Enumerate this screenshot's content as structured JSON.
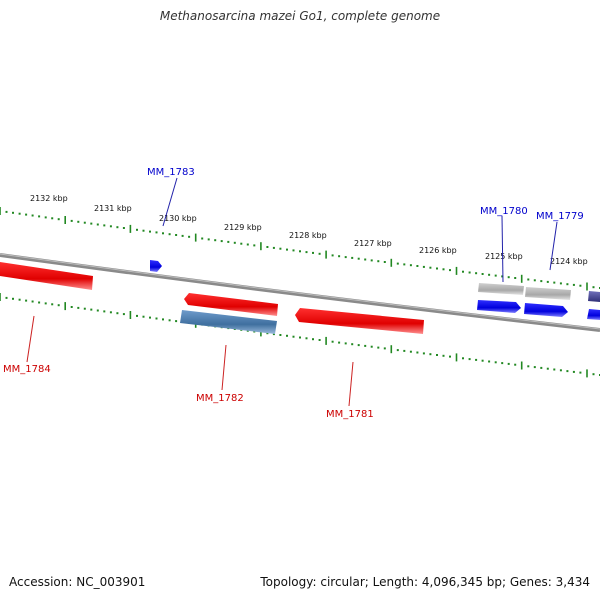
{
  "title": "Methanosarcina mazei Go1, complete genome",
  "footer": {
    "accession": "Accession: NC_003901",
    "summary": "Topology: circular; Length: 4,096,345 bp; Genes: 3,434"
  },
  "ruler": {
    "labels": [
      "2132 kbp",
      "2131 kbp",
      "2130 kbp",
      "2129 kbp",
      "2128 kbp",
      "2127 kbp",
      "2126 kbp",
      "2125 kbp",
      "2124 kbp"
    ]
  },
  "genes": [
    {
      "name": "MM_1783",
      "strand": "forward",
      "color": "#0000cc"
    },
    {
      "name": "MM_1780",
      "strand": "forward",
      "color": "#0000cc"
    },
    {
      "name": "MM_1779",
      "strand": "forward",
      "color": "#0000cc"
    },
    {
      "name": "MM_1784",
      "strand": "reverse",
      "color": "#cc0000"
    },
    {
      "name": "MM_1782",
      "strand": "reverse",
      "color": "#cc0000"
    },
    {
      "name": "MM_1781",
      "strand": "reverse",
      "color": "#cc0000"
    }
  ],
  "colors": {
    "forward_gene": "#0000ee",
    "reverse_gene": "#ee0000",
    "rna_gene": "#4477aa",
    "pseudo_gene": "#aaaaaa",
    "tick": "#228822",
    "backbone": "#888888"
  }
}
